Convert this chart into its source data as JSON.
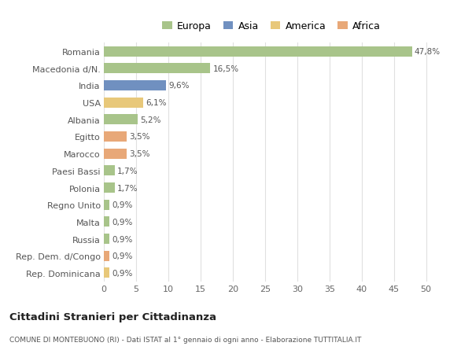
{
  "categories": [
    "Rep. Dominicana",
    "Rep. Dem. d/Congo",
    "Russia",
    "Malta",
    "Regno Unito",
    "Polonia",
    "Paesi Bassi",
    "Marocco",
    "Egitto",
    "Albania",
    "USA",
    "India",
    "Macedonia d/N.",
    "Romania"
  ],
  "values": [
    0.9,
    0.9,
    0.9,
    0.9,
    0.9,
    1.7,
    1.7,
    3.5,
    3.5,
    5.2,
    6.1,
    9.6,
    16.5,
    47.8
  ],
  "labels": [
    "0,9%",
    "0,9%",
    "0,9%",
    "0,9%",
    "0,9%",
    "1,7%",
    "1,7%",
    "3,5%",
    "3,5%",
    "5,2%",
    "6,1%",
    "9,6%",
    "16,5%",
    "47,8%"
  ],
  "colors": [
    "#e8c87a",
    "#e8a878",
    "#a8c48a",
    "#a8c48a",
    "#a8c48a",
    "#a8c48a",
    "#a8c48a",
    "#e8a878",
    "#e8a878",
    "#a8c48a",
    "#e8c87a",
    "#7090c0",
    "#a8c48a",
    "#a8c48a"
  ],
  "legend_labels": [
    "Europa",
    "Asia",
    "America",
    "Africa"
  ],
  "legend_colors": [
    "#a8c48a",
    "#7090c0",
    "#e8c87a",
    "#e8a878"
  ],
  "title": "Cittadini Stranieri per Cittadinanza",
  "subtitle": "COMUNE DI MONTEBUONO (RI) - Dati ISTAT al 1° gennaio di ogni anno - Elaborazione TUTTITALIA.IT",
  "xlim": [
    0,
    52
  ],
  "xticks": [
    0,
    5,
    10,
    15,
    20,
    25,
    30,
    35,
    40,
    45,
    50
  ],
  "bg_color": "#ffffff",
  "grid_color": "#e0e0e0",
  "bar_height": 0.6
}
